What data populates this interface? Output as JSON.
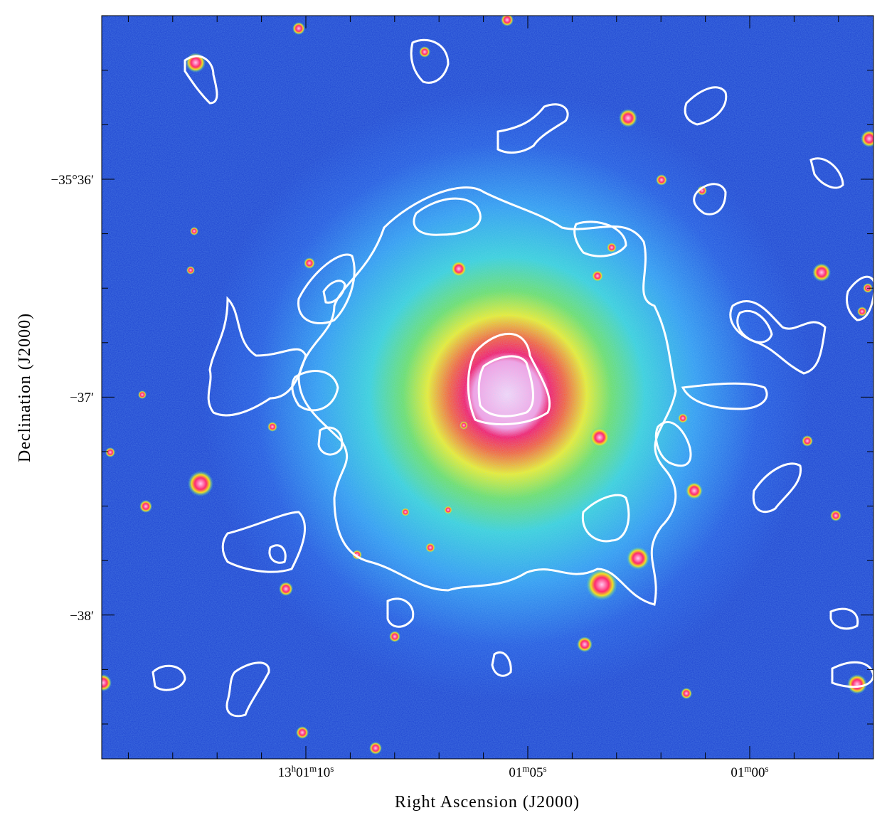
{
  "figure": {
    "x_axis_title": "Right Ascension (J2000)",
    "y_axis_title": "Declination (J2000)",
    "x_ticks": [
      [
        "13",
        "h",
        "01",
        "m",
        "10",
        "s"
      ],
      [
        "01",
        "m",
        "05",
        "s"
      ],
      [
        "01",
        "m",
        "00",
        "s"
      ]
    ],
    "y_ticks": [
      "−35°36′",
      "−37′",
      "−38′"
    ]
  }
}
